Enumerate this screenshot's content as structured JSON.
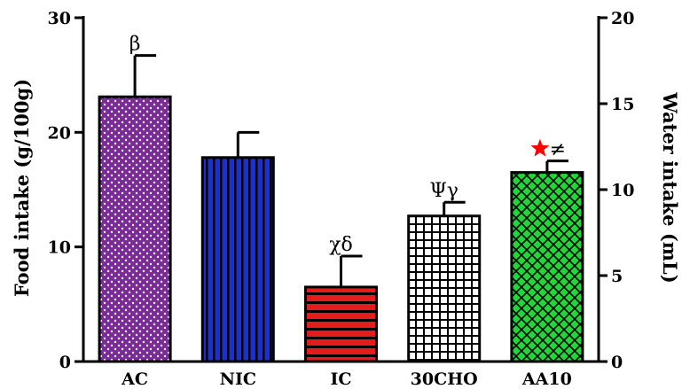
{
  "chart_data": {
    "type": "bar",
    "categories": [
      "AC",
      "NIC",
      "IC",
      "30CHO",
      "AA10"
    ],
    "values": [
      23.1,
      17.8,
      6.5,
      12.7,
      16.5
    ],
    "errors": [
      3.6,
      2.2,
      2.7,
      1.2,
      1.0
    ],
    "ylabel": "Food intake (g/100g)",
    "y2label": "Water intake (mL)",
    "ylim": [
      0,
      30
    ],
    "y2lim": [
      0,
      20
    ],
    "yticks": [
      "0",
      "10",
      "20",
      "30"
    ],
    "y2ticks": [
      "0",
      "5",
      "10",
      "15",
      "20"
    ],
    "annotations": [
      "β",
      "",
      "χδ",
      "Ψγ",
      "≠"
    ],
    "bar_colors": [
      "#7b2a99",
      "#1a2fd6",
      "#e51c1c",
      "#ffffff",
      "#22d63a"
    ],
    "bar_patterns": [
      "dots",
      "vertical-stripes",
      "horizontal-stripes",
      "grid",
      "crosshatch"
    ],
    "star_on": "AA10",
    "star_color": "#ff0000",
    "grid": false,
    "legend": "none"
  }
}
